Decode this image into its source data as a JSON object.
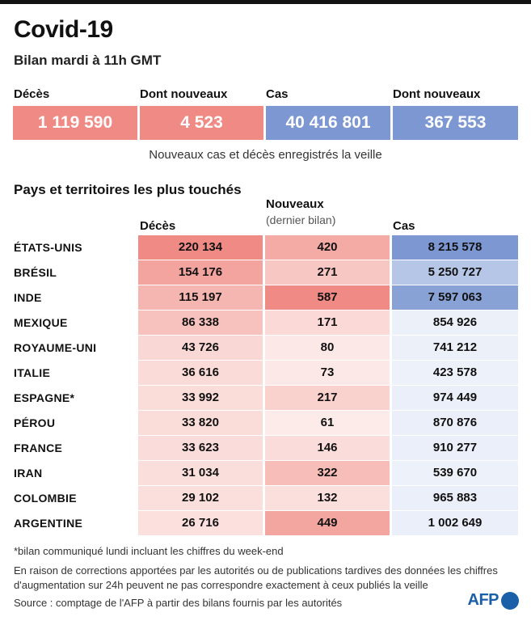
{
  "header": {
    "title": "Covid-19",
    "subtitle": "Bilan mardi à 11h GMT"
  },
  "summary": {
    "labels": [
      "Décès",
      "Dont nouveaux",
      "Cas",
      "Dont nouveaux"
    ],
    "values": [
      "1 119 590",
      "4 523",
      "40 416 801",
      "367 553"
    ],
    "note": "Nouveaux cas et décès enregistrés la veille",
    "colors": {
      "deaths": "#f08a84",
      "cases": "#7c97d1"
    }
  },
  "table_header": {
    "section_title": "Pays et territoires les plus touchés",
    "col_deaths": "Décès",
    "col_new": "Nouveaux",
    "col_new_sub": "(dernier bilan)",
    "col_cases": "Cas"
  },
  "chart_data": {
    "type": "table",
    "title": "Pays et territoires les plus touchés",
    "columns": [
      "Décès",
      "Nouveaux (dernier bilan)",
      "Cas"
    ],
    "rows": [
      {
        "country": "ÉTATS-UNIS",
        "deaths": 220134,
        "new": 420,
        "cases": 8215578,
        "deaths_label": "220 134",
        "new_label": "420",
        "cases_label": "8 215 578"
      },
      {
        "country": "BRÉSIL",
        "deaths": 154176,
        "new": 271,
        "cases": 5250727,
        "deaths_label": "154 176",
        "new_label": "271",
        "cases_label": "5 250 727"
      },
      {
        "country": "INDE",
        "deaths": 115197,
        "new": 587,
        "cases": 7597063,
        "deaths_label": "115 197",
        "new_label": "587",
        "cases_label": "7 597 063"
      },
      {
        "country": "MEXIQUE",
        "deaths": 86338,
        "new": 171,
        "cases": 854926,
        "deaths_label": "86 338",
        "new_label": "171",
        "cases_label": "854 926"
      },
      {
        "country": "ROYAUME-UNI",
        "deaths": 43726,
        "new": 80,
        "cases": 741212,
        "deaths_label": "43 726",
        "new_label": "80",
        "cases_label": "741 212"
      },
      {
        "country": "ITALIE",
        "deaths": 36616,
        "new": 73,
        "cases": 423578,
        "deaths_label": "36 616",
        "new_label": "73",
        "cases_label": "423 578"
      },
      {
        "country": "ESPAGNE*",
        "deaths": 33992,
        "new": 217,
        "cases": 974449,
        "deaths_label": "33 992",
        "new_label": "217",
        "cases_label": "974 449"
      },
      {
        "country": "PÉROU",
        "deaths": 33820,
        "new": 61,
        "cases": 870876,
        "deaths_label": "33 820",
        "new_label": "61",
        "cases_label": "870 876"
      },
      {
        "country": "FRANCE",
        "deaths": 33623,
        "new": 146,
        "cases": 910277,
        "deaths_label": "33 623",
        "new_label": "146",
        "cases_label": "910 277"
      },
      {
        "country": "IRAN",
        "deaths": 31034,
        "new": 322,
        "cases": 539670,
        "deaths_label": "31 034",
        "new_label": "322",
        "cases_label": "539 670"
      },
      {
        "country": "COLOMBIE",
        "deaths": 29102,
        "new": 132,
        "cases": 965883,
        "deaths_label": "29 102",
        "new_label": "132",
        "cases_label": "965 883"
      },
      {
        "country": "ARGENTINE",
        "deaths": 26716,
        "new": 449,
        "cases": 1002649,
        "deaths_label": "26 716",
        "new_label": "449",
        "cases_label": "1 002 649"
      }
    ]
  },
  "footer": {
    "asterisk_note": "*bilan communiqué lundi incluant les chiffres du week-end",
    "disclaimer": "En raison de corrections apportées par les autorités ou de publications tardives des données  les chiffres d'augmentation sur 24h peuvent ne pas correspondre exactement à ceux publiés la veille",
    "source": "Source : comptage de l'AFP à partir des bilans fournis par les autorités",
    "logo": "AFP"
  }
}
